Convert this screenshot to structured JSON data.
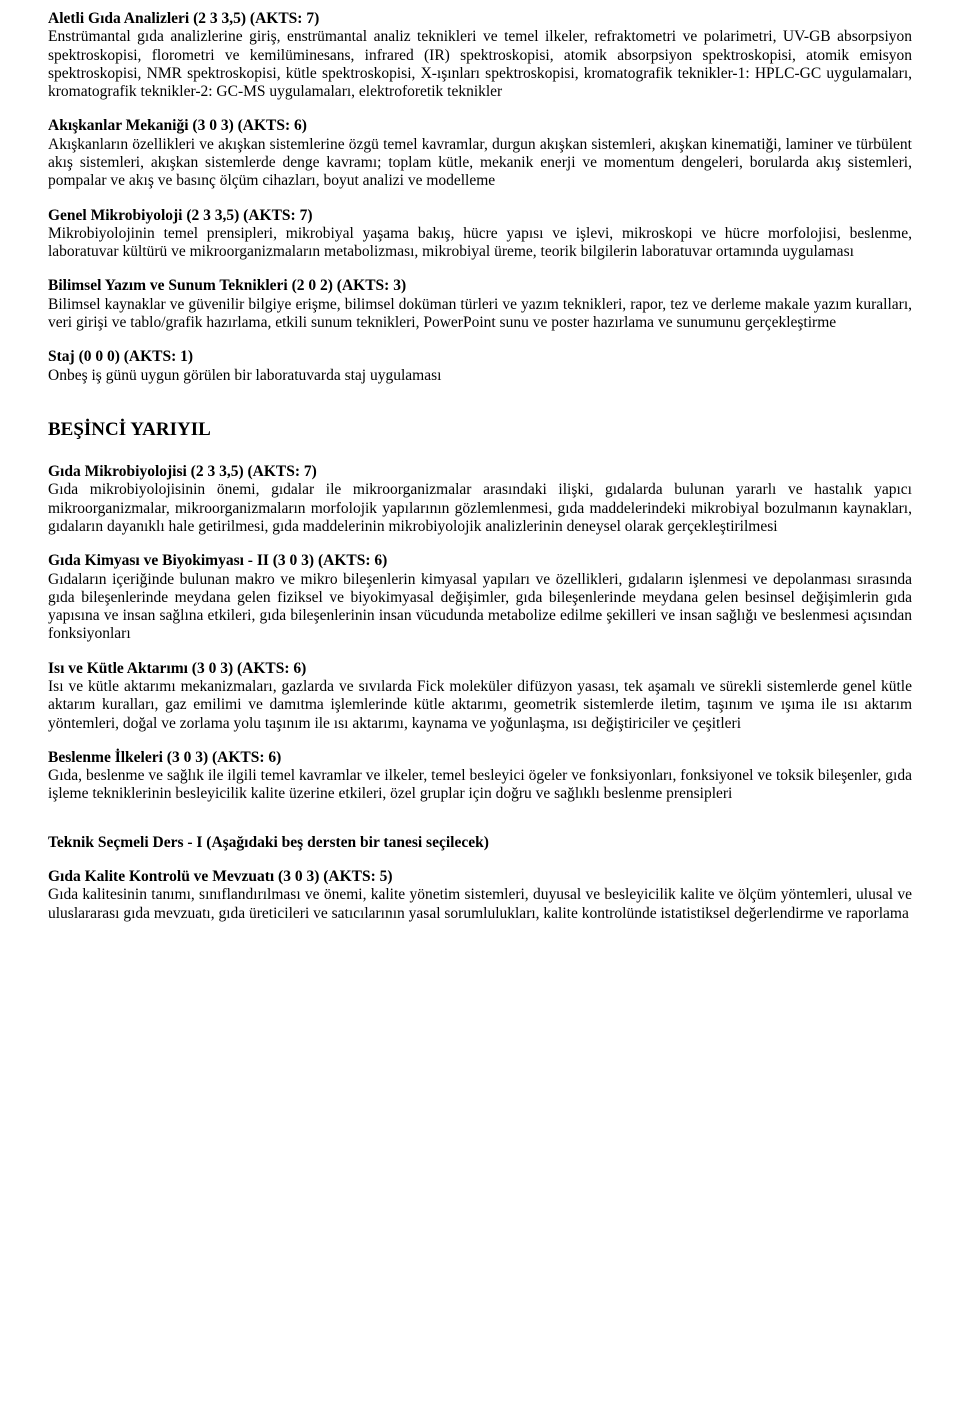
{
  "courses_top": [
    {
      "title": "Aletli Gıda Analizleri (2 3 3,5) (AKTS: 7)",
      "desc": "Enstrümantal gıda analizlerine giriş, enstrümantal analiz teknikleri ve temel ilkeler, refraktometri ve polarimetri, UV-GB absorpsiyon spektroskopisi, florometri ve kemilüminesans, infrared (IR) spektroskopisi, atomik absorpsiyon spektroskopisi, atomik emisyon spektroskopisi, NMR spektroskopisi, kütle spektroskopisi, X-ışınları spektroskopisi, kromatografik teknikler-1: HPLC-GC uygulamaları, kromatografik teknikler-2: GC-MS uygulamaları, elektroforetik teknikler"
    },
    {
      "title": "Akışkanlar Mekaniği (3 0 3) (AKTS: 6)",
      "desc": "Akışkanların özellikleri ve akışkan sistemlerine özgü temel kavramlar, durgun akışkan sistemleri, akışkan kinematiği, laminer ve türbülent akış sistemleri, akışkan sistemlerde denge kavramı; toplam kütle, mekanik enerji ve momentum dengeleri, borularda akış sistemleri, pompalar ve akış ve basınç ölçüm cihazları, boyut analizi ve modelleme"
    },
    {
      "title": "Genel Mikrobiyoloji (2 3 3,5) (AKTS: 7)",
      "desc": "Mikrobiyolojinin temel prensipleri, mikrobiyal yaşama bakış, hücre yapısı ve işlevi, mikroskopi ve hücre morfolojisi, beslenme, laboratuvar kültürü ve mikroorganizmaların metabolizması, mikrobiyal üreme, teorik bilgilerin laboratuvar ortamında uygulaması"
    },
    {
      "title": "Bilimsel Yazım ve Sunum Teknikleri (2 0 2) (AKTS: 3)",
      "desc": "Bilimsel kaynaklar ve güvenilir bilgiye erişme, bilimsel doküman türleri ve yazım teknikleri, rapor, tez ve derleme makale yazım kuralları, veri girişi ve tablo/grafik hazırlama, etkili sunum teknikleri, PowerPoint sunu ve poster hazırlama ve sunumunu gerçekleştirme"
    },
    {
      "title": "Staj (0 0 0) (AKTS: 1)",
      "desc": "Onbeş iş günü uygun görülen bir laboratuvarda staj uygulaması"
    }
  ],
  "semester_heading": "BEŞİNCİ YARIYIL",
  "courses_sem": [
    {
      "title": "Gıda Mikrobiyolojisi (2 3 3,5) (AKTS: 7)",
      "desc": "Gıda mikrobiyolojisinin önemi, gıdalar ile mikroorganizmalar arasındaki ilişki, gıdalarda bulunan yararlı ve hastalık yapıcı mikroorganizmalar, mikroorganizmaların morfolojik yapılarının gözlemlenmesi, gıda maddelerindeki mikrobiyal bozulmanın kaynakları, gıdaların dayanıklı hale getirilmesi, gıda maddelerinin mikrobiyolojik analizlerinin deneysel olarak gerçekleştirilmesi"
    },
    {
      "title": "Gıda Kimyası ve Biyokimyası - II (3 0 3) (AKTS: 6)",
      "desc": "Gıdaların içeriğinde bulunan makro ve mikro bileşenlerin kimyasal yapıları ve özellikleri, gıdaların işlenmesi ve depolanması sırasında gıda bileşenlerinde meydana gelen fiziksel ve biyokimyasal değişimler, gıda bileşenlerinde meydana gelen besinsel değişimlerin gıda yapısına ve insan sağlına etkileri, gıda bileşenlerinin insan vücudunda metabolize edilme şekilleri ve insan sağlığı ve beslenmesi açısından fonksiyonları"
    },
    {
      "title": "Isı ve Kütle Aktarımı (3 0 3) (AKTS: 6)",
      "desc": "Isı ve kütle aktarımı mekanizmaları, gazlarda ve sıvılarda Fick moleküler difüzyon yasası, tek aşamalı ve sürekli sistemlerde genel kütle aktarım kuralları, gaz emilimi ve damıtma işlemlerinde kütle aktarımı, geometrik sistemlerde iletim, taşınım ve ışıma ile ısı aktarım yöntemleri, doğal ve zorlama yolu taşınım ile ısı aktarımı, kaynama ve yoğunlaşma, ısı değiştiriciler ve çeşitleri"
    },
    {
      "title": "Beslenme İlkeleri (3 0 3) (AKTS: 6)",
      "desc": "Gıda, beslenme ve sağlık ile ilgili temel kavramlar ve ilkeler, temel besleyici ögeler ve fonksiyonları, fonksiyonel ve toksik bileşenler, gıda işleme tekniklerinin besleyicilik kalite üzerine etkileri, özel gruplar için doğru ve sağlıklı beslenme prensipleri"
    }
  ],
  "elective_heading": "Teknik Seçmeli Ders - I (Aşağıdaki beş dersten bir tanesi seçilecek)",
  "courses_elective": [
    {
      "title": "Gıda Kalite Kontrolü ve Mevzuatı (3 0 3) (AKTS: 5)",
      "desc": "Gıda kalitesinin tanımı, sınıflandırılması ve önemi, kalite yönetim sistemleri, duyusal ve besleyicilik kalite ve ölçüm yöntemleri, ulusal ve uluslararası gıda mevzuatı, gıda üreticileri ve satıcılarının yasal sorumlulukları, kalite kontrolünde istatistiksel değerlendirme ve raporlama"
    }
  ]
}
